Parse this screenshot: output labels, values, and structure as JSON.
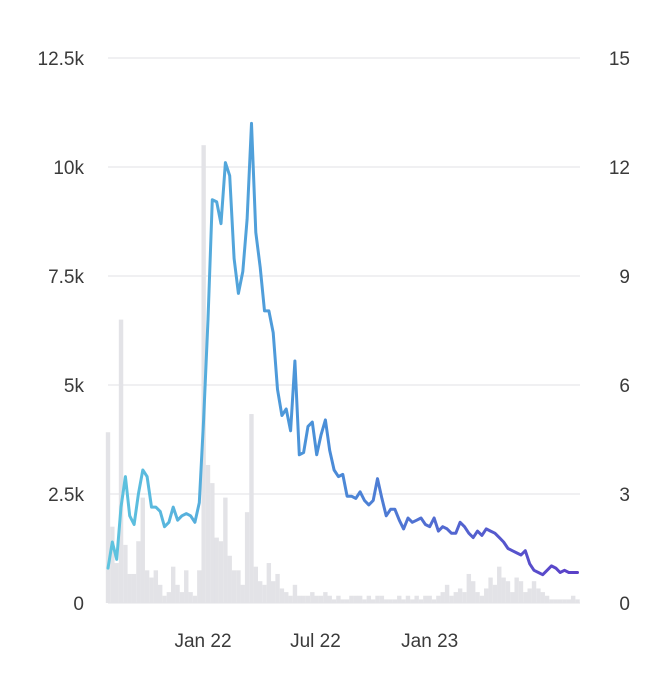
{
  "chart_data": {
    "type": "line",
    "title": "",
    "xlabel": "",
    "ylabel": "",
    "y2label": "",
    "grid": "horizontal",
    "legend": "none",
    "x_start": "2021-08-01",
    "x_end": "2023-08-31",
    "x_ticks": [
      {
        "date": "2022-01-01",
        "label": "Jan 22"
      },
      {
        "date": "2022-07-01",
        "label": "Jul 22"
      },
      {
        "date": "2023-01-01",
        "label": "Jan 23"
      }
    ],
    "y_left": {
      "ylim": [
        0,
        12500
      ],
      "ticks": [
        0,
        2500,
        5000,
        7500,
        10000,
        12500
      ],
      "tick_labels": [
        "0",
        "2.5k",
        "5k",
        "7.5k",
        "10k",
        "12.5k"
      ]
    },
    "y_right": {
      "ylim": [
        0,
        15
      ],
      "ticks": [
        0,
        3,
        6,
        9,
        12,
        15
      ],
      "tick_labels": [
        "0",
        "3",
        "6",
        "9",
        "12",
        "15"
      ]
    },
    "colors": {
      "line_start": "#5ec4df",
      "line_mid": "#4a8fd8",
      "line_end": "#5b3fc8",
      "bars": "#e3e3e7",
      "grid": "#e6e6ea",
      "text": "#3a3a3a"
    },
    "series": [
      {
        "type": "line",
        "axis": "left",
        "x": [
          "2021-08-01",
          "2021-08-08",
          "2021-08-15",
          "2021-08-22",
          "2021-08-29",
          "2021-09-05",
          "2021-09-12",
          "2021-09-19",
          "2021-09-26",
          "2021-10-03",
          "2021-10-10",
          "2021-10-17",
          "2021-10-24",
          "2021-10-31",
          "2021-11-07",
          "2021-11-14",
          "2021-11-21",
          "2021-11-28",
          "2021-12-05",
          "2021-12-12",
          "2021-12-19",
          "2021-12-26",
          "2022-01-02",
          "2022-01-09",
          "2022-01-16",
          "2022-01-23",
          "2022-01-30",
          "2022-02-06",
          "2022-02-13",
          "2022-02-20",
          "2022-02-27",
          "2022-03-06",
          "2022-03-13",
          "2022-03-20",
          "2022-03-27",
          "2022-04-03",
          "2022-04-10",
          "2022-04-17",
          "2022-04-24",
          "2022-05-01",
          "2022-05-08",
          "2022-05-15",
          "2022-05-22",
          "2022-05-29",
          "2022-06-05",
          "2022-06-12",
          "2022-06-19",
          "2022-06-26",
          "2022-07-03",
          "2022-07-10",
          "2022-07-17",
          "2022-07-24",
          "2022-07-31",
          "2022-08-07",
          "2022-08-14",
          "2022-08-21",
          "2022-08-28",
          "2022-09-04",
          "2022-09-11",
          "2022-09-18",
          "2022-09-25",
          "2022-10-02",
          "2022-10-09",
          "2022-10-16",
          "2022-10-23",
          "2022-10-30",
          "2022-11-06",
          "2022-11-13",
          "2022-11-20",
          "2022-11-27",
          "2022-12-04",
          "2022-12-11",
          "2022-12-18",
          "2022-12-25",
          "2023-01-01",
          "2023-01-08",
          "2023-01-15",
          "2023-01-22",
          "2023-01-29",
          "2023-02-05",
          "2023-02-12",
          "2023-02-19",
          "2023-02-26",
          "2023-03-05",
          "2023-03-12",
          "2023-03-19",
          "2023-03-26",
          "2023-04-02",
          "2023-04-09",
          "2023-04-16",
          "2023-04-23",
          "2023-04-30",
          "2023-05-07",
          "2023-05-14",
          "2023-05-21",
          "2023-05-28",
          "2023-06-04",
          "2023-06-11",
          "2023-06-18",
          "2023-06-25",
          "2023-07-02",
          "2023-07-09",
          "2023-07-16",
          "2023-07-23",
          "2023-07-30",
          "2023-08-06",
          "2023-08-13",
          "2023-08-20",
          "2023-08-27"
        ],
        "values": [
          800,
          1400,
          1000,
          2200,
          2900,
          2000,
          1800,
          2500,
          3050,
          2900,
          2200,
          2200,
          2100,
          1750,
          1850,
          2200,
          1900,
          2000,
          2050,
          2000,
          1850,
          2300,
          4200,
          6500,
          9250,
          9200,
          8700,
          10100,
          9800,
          7900,
          7100,
          7600,
          8800,
          11000,
          8500,
          7700,
          6700,
          6700,
          6200,
          4900,
          4300,
          4450,
          3950,
          5550,
          3400,
          3450,
          4050,
          4150,
          3400,
          3850,
          4200,
          3500,
          3050,
          2900,
          2950,
          2450,
          2450,
          2400,
          2550,
          2350,
          2250,
          2350,
          2850,
          2400,
          2000,
          2150,
          2150,
          1900,
          1700,
          1950,
          1850,
          1900,
          1950,
          1800,
          1750,
          1950,
          1650,
          1750,
          1700,
          1600,
          1600,
          1850,
          1750,
          1600,
          1500,
          1650,
          1550,
          1700,
          1650,
          1600,
          1500,
          1400,
          1250,
          1200,
          1150,
          1100,
          1200,
          900,
          750,
          700,
          650,
          750,
          850,
          800,
          700,
          750,
          700,
          700,
          700
        ]
      },
      {
        "type": "bar",
        "axis": "right",
        "x": [
          "2021-08-01",
          "2021-08-08",
          "2021-08-15",
          "2021-08-22",
          "2021-08-29",
          "2021-09-05",
          "2021-09-12",
          "2021-09-19",
          "2021-09-26",
          "2021-10-03",
          "2021-10-10",
          "2021-10-17",
          "2021-10-24",
          "2021-10-31",
          "2021-11-07",
          "2021-11-14",
          "2021-11-21",
          "2021-11-28",
          "2021-12-05",
          "2021-12-12",
          "2021-12-19",
          "2021-12-26",
          "2022-01-02",
          "2022-01-09",
          "2022-01-16",
          "2022-01-23",
          "2022-01-30",
          "2022-02-06",
          "2022-02-13",
          "2022-02-20",
          "2022-02-27",
          "2022-03-06",
          "2022-03-13",
          "2022-03-20",
          "2022-03-27",
          "2022-04-03",
          "2022-04-10",
          "2022-04-17",
          "2022-04-24",
          "2022-05-01",
          "2022-05-08",
          "2022-05-15",
          "2022-05-22",
          "2022-05-29",
          "2022-06-05",
          "2022-06-12",
          "2022-06-19",
          "2022-06-26",
          "2022-07-03",
          "2022-07-10",
          "2022-07-17",
          "2022-07-24",
          "2022-07-31",
          "2022-08-07",
          "2022-08-14",
          "2022-08-21",
          "2022-08-28",
          "2022-09-04",
          "2022-09-11",
          "2022-09-18",
          "2022-09-25",
          "2022-10-02",
          "2022-10-09",
          "2022-10-16",
          "2022-10-23",
          "2022-10-30",
          "2022-11-06",
          "2022-11-13",
          "2022-11-20",
          "2022-11-27",
          "2022-12-04",
          "2022-12-11",
          "2022-12-18",
          "2022-12-25",
          "2023-01-01",
          "2023-01-08",
          "2023-01-15",
          "2023-01-22",
          "2023-01-29",
          "2023-02-05",
          "2023-02-12",
          "2023-02-19",
          "2023-02-26",
          "2023-03-05",
          "2023-03-12",
          "2023-03-19",
          "2023-03-26",
          "2023-04-02",
          "2023-04-09",
          "2023-04-16",
          "2023-04-23",
          "2023-04-30",
          "2023-05-07",
          "2023-05-14",
          "2023-05-21",
          "2023-05-28",
          "2023-06-04",
          "2023-06-11",
          "2023-06-18",
          "2023-06-25",
          "2023-07-02",
          "2023-07-09",
          "2023-07-16",
          "2023-07-23",
          "2023-07-30",
          "2023-08-06",
          "2023-08-13",
          "2023-08-20",
          "2023-08-27"
        ],
        "values": [
          4.7,
          2.1,
          1.1,
          7.8,
          1.6,
          0.8,
          0.8,
          1.7,
          2.9,
          0.9,
          0.7,
          0.9,
          0.5,
          0.2,
          0.3,
          1.0,
          0.5,
          0.3,
          0.9,
          0.3,
          0.2,
          0.9,
          12.6,
          3.8,
          3.3,
          1.8,
          1.7,
          2.9,
          1.3,
          0.9,
          0.9,
          0.5,
          2.5,
          5.2,
          1.0,
          0.6,
          0.5,
          1.1,
          0.6,
          0.8,
          0.4,
          0.3,
          0.2,
          0.5,
          0.2,
          0.2,
          0.2,
          0.3,
          0.2,
          0.2,
          0.3,
          0.2,
          0.1,
          0.2,
          0.1,
          0.1,
          0.2,
          0.2,
          0.2,
          0.1,
          0.2,
          0.1,
          0.2,
          0.2,
          0.1,
          0.1,
          0.1,
          0.2,
          0.1,
          0.2,
          0.1,
          0.2,
          0.1,
          0.2,
          0.2,
          0.1,
          0.2,
          0.3,
          0.5,
          0.2,
          0.3,
          0.4,
          0.3,
          0.8,
          0.6,
          0.3,
          0.2,
          0.4,
          0.7,
          0.5,
          1.0,
          0.7,
          0.6,
          0.3,
          0.7,
          0.6,
          0.3,
          0.4,
          0.6,
          0.4,
          0.3,
          0.2,
          0.1,
          0.1,
          0.1,
          0.1,
          0.1,
          0.2,
          0.1
        ]
      }
    ]
  }
}
